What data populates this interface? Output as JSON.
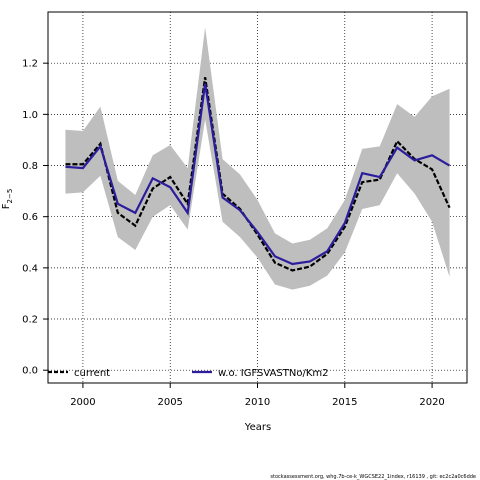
{
  "chart_data": {
    "type": "line",
    "xlabel": "Years",
    "ylabel": "F",
    "ylabel_subscript": "2−5",
    "xlim": [
      1998,
      2022
    ],
    "ylim": [
      -0.05,
      1.4
    ],
    "x_ticks": [
      2000,
      2005,
      2010,
      2015,
      2020
    ],
    "y_ticks": [
      0.0,
      0.2,
      0.4,
      0.6,
      0.8,
      1.0,
      1.2
    ],
    "grid": true,
    "legend_position": "bottom",
    "x": [
      1999,
      2000,
      2001,
      2002,
      2003,
      2004,
      2005,
      2006,
      2007,
      2008,
      2009,
      2010,
      2011,
      2012,
      2013,
      2014,
      2015,
      2016,
      2017,
      2018,
      2019,
      2020,
      2021
    ],
    "band": {
      "name": "confidence interval",
      "color": "#bebebe",
      "lower": [
        0.69,
        0.695,
        0.76,
        0.52,
        0.47,
        0.6,
        0.645,
        0.55,
        0.98,
        0.58,
        0.52,
        0.44,
        0.335,
        0.315,
        0.33,
        0.37,
        0.46,
        0.63,
        0.645,
        0.77,
        0.69,
        0.58,
        0.365
      ],
      "upper": [
        0.94,
        0.935,
        1.03,
        0.74,
        0.685,
        0.84,
        0.88,
        0.79,
        1.34,
        0.825,
        0.765,
        0.665,
        0.535,
        0.495,
        0.51,
        0.555,
        0.665,
        0.865,
        0.875,
        1.04,
        0.99,
        1.07,
        1.1
      ]
    },
    "series": [
      {
        "name": "current",
        "color": "#000000",
        "dashed": true,
        "values": [
          0.805,
          0.805,
          0.885,
          0.615,
          0.565,
          0.71,
          0.755,
          0.65,
          1.145,
          0.69,
          0.63,
          0.53,
          0.42,
          0.39,
          0.405,
          0.455,
          0.56,
          0.735,
          0.745,
          0.895,
          0.825,
          0.785,
          0.635
        ]
      },
      {
        "name": "w.o. IGFSVASTNo/Km2",
        "color": "#2b1d9c",
        "dashed": false,
        "values": [
          0.795,
          0.79,
          0.875,
          0.65,
          0.615,
          0.75,
          0.715,
          0.615,
          1.12,
          0.675,
          0.625,
          0.54,
          0.445,
          0.415,
          0.425,
          0.465,
          0.575,
          0.77,
          0.755,
          0.87,
          0.82,
          0.84,
          0.8
        ]
      }
    ]
  },
  "footer": "stockassessment.org, whg.7b-ce-k_WGCSE22_1index, r16139 , git: ec2c2a0c6dde"
}
